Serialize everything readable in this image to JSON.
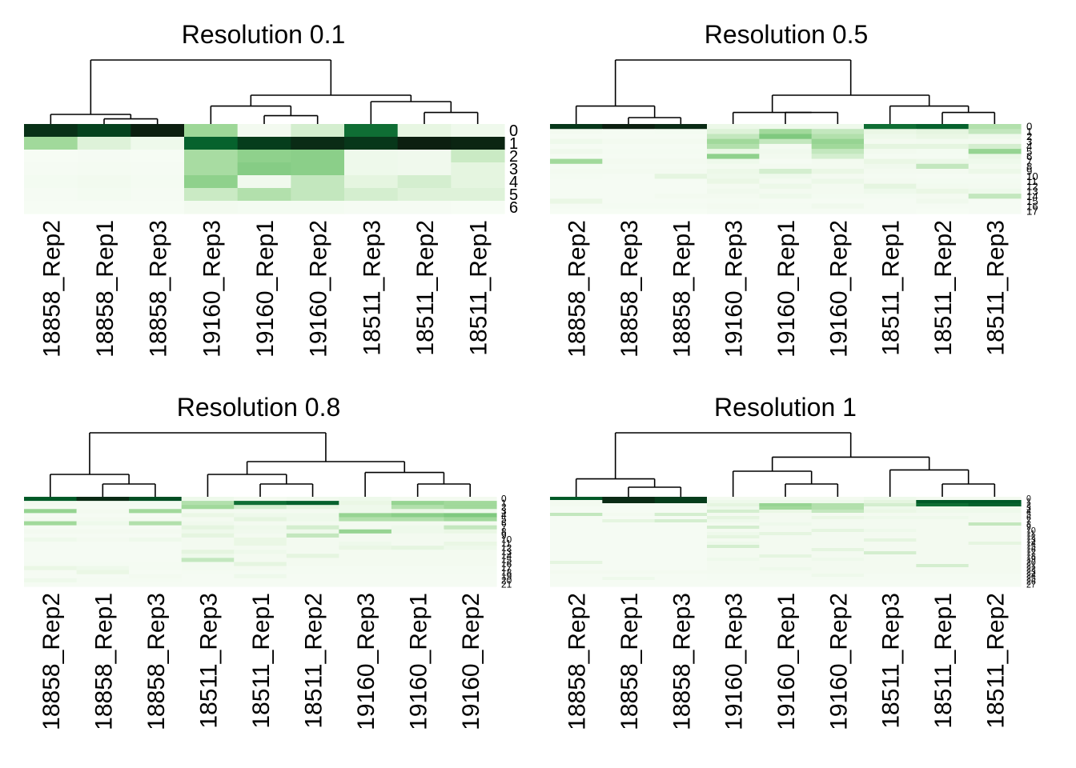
{
  "figure": {
    "background": "#ffffff",
    "palette": [
      "#f7fcf5",
      "#c7e9c0",
      "#74c476",
      "#238b45",
      "#006d2c",
      "#0c1f10"
    ]
  },
  "chart_data": [
    {
      "type": "heatmap",
      "title": "Resolution 0.1",
      "columns": [
        "18858_Rep2",
        "18858_Rep1",
        "18858_Rep3",
        "19160_Rep3",
        "19160_Rep1",
        "19160_Rep2",
        "18511_Rep3",
        "18511_Rep2",
        "18511_Rep1"
      ],
      "rows": [
        "0",
        "1",
        "2",
        "3",
        "4",
        "5",
        "6"
      ],
      "values": [
        [
          0.97,
          0.94,
          1.0,
          0.42,
          0.05,
          0.25,
          0.85,
          0.18,
          0.09
        ],
        [
          0.4,
          0.22,
          0.1,
          0.88,
          0.95,
          0.98,
          0.96,
          1.0,
          0.99
        ],
        [
          0.01,
          0.02,
          0.01,
          0.38,
          0.48,
          0.5,
          0.1,
          0.08,
          0.28
        ],
        [
          0.02,
          0.03,
          0.02,
          0.38,
          0.52,
          0.5,
          0.1,
          0.08,
          0.2
        ],
        [
          0.04,
          0.06,
          0.03,
          0.48,
          0.08,
          0.3,
          0.2,
          0.25,
          0.2
        ],
        [
          0.02,
          0.04,
          0.02,
          0.28,
          0.35,
          0.3,
          0.25,
          0.22,
          0.22
        ],
        [
          0.01,
          0.01,
          0.01,
          0.06,
          0.04,
          0.04,
          0.02,
          0.02,
          0.01
        ]
      ],
      "dendrogram": "(((18858_Rep2,(18858_Rep1,18858_Rep3)),((19160_Rep3,(19160_Rep1,19160_Rep2)),(18511_Rep3,(18511_Rep2,18511_Rep1)))))",
      "color_scale": "white-to-dark-green"
    },
    {
      "type": "heatmap",
      "title": "Resolution 0.5",
      "columns": [
        "18858_Rep2",
        "18858_Rep3",
        "18858_Rep1",
        "19160_Rep3",
        "19160_Rep1",
        "19160_Rep2",
        "18511_Rep1",
        "18511_Rep2",
        "18511_Rep3"
      ],
      "rows": [
        "0",
        "1",
        "2",
        "3",
        "4",
        "5",
        "6",
        "7",
        "8",
        "9",
        "10",
        "11",
        "12",
        "13",
        "14",
        "15",
        "16",
        "17"
      ],
      "values": [
        [
          0.96,
          1.0,
          0.98,
          0.12,
          0.1,
          0.1,
          0.85,
          0.88,
          0.35
        ],
        [
          0.05,
          0.03,
          0.04,
          0.22,
          0.4,
          0.3,
          0.15,
          0.2,
          0.3
        ],
        [
          0.02,
          0.02,
          0.02,
          0.3,
          0.55,
          0.35,
          0.1,
          0.15,
          0.1
        ],
        [
          0.1,
          0.05,
          0.05,
          0.4,
          0.3,
          0.45,
          0.05,
          0.06,
          0.05
        ],
        [
          0.02,
          0.02,
          0.02,
          0.35,
          0.05,
          0.4,
          0.2,
          0.2,
          0.25
        ],
        [
          0.08,
          0.03,
          0.03,
          0.15,
          0.08,
          0.3,
          0.06,
          0.04,
          0.45
        ],
        [
          0.02,
          0.02,
          0.02,
          0.48,
          0.06,
          0.25,
          0.03,
          0.03,
          0.15
        ],
        [
          0.4,
          0.05,
          0.05,
          0.1,
          0.02,
          0.05,
          0.15,
          0.12,
          0.1
        ],
        [
          0.03,
          0.03,
          0.03,
          0.05,
          0.05,
          0.05,
          0.08,
          0.3,
          0.06
        ],
        [
          0.05,
          0.05,
          0.05,
          0.12,
          0.25,
          0.15,
          0.05,
          0.05,
          0.12
        ],
        [
          0.03,
          0.02,
          0.2,
          0.1,
          0.1,
          0.05,
          0.03,
          0.02,
          0.02
        ],
        [
          0.02,
          0.02,
          0.02,
          0.15,
          0.05,
          0.12,
          0.05,
          0.04,
          0.04
        ],
        [
          0.02,
          0.02,
          0.02,
          0.05,
          0.12,
          0.05,
          0.2,
          0.06,
          0.05
        ],
        [
          0.02,
          0.02,
          0.02,
          0.08,
          0.05,
          0.05,
          0.1,
          0.15,
          0.1
        ],
        [
          0.02,
          0.02,
          0.05,
          0.05,
          0.1,
          0.04,
          0.04,
          0.05,
          0.3
        ],
        [
          0.15,
          0.02,
          0.02,
          0.03,
          0.02,
          0.02,
          0.02,
          0.08,
          0.02
        ],
        [
          0.02,
          0.03,
          0.03,
          0.05,
          0.03,
          0.08,
          0.02,
          0.02,
          0.02
        ],
        [
          0.01,
          0.01,
          0.01,
          0.03,
          0.02,
          0.02,
          0.02,
          0.01,
          0.02
        ]
      ],
      "dendrogram": "((18858_Rep2,(18858_Rep3,18858_Rep1)),((19160_Rep3,(19160_Rep1,19160_Rep2)),(18511_Rep1,(18511_Rep2,18511_Rep3))))",
      "color_scale": "white-to-dark-green"
    },
    {
      "type": "heatmap",
      "title": "Resolution 0.8",
      "columns": [
        "18858_Rep2",
        "18858_Rep1",
        "18858_Rep3",
        "18511_Rep3",
        "18511_Rep1",
        "18511_Rep2",
        "19160_Rep3",
        "19160_Rep1",
        "19160_Rep2"
      ],
      "rows": [
        "0",
        "1",
        "2",
        "3",
        "4",
        "5",
        "6",
        "7",
        "8",
        "9",
        "10",
        "11",
        "12",
        "13",
        "14",
        "15",
        "16",
        "17",
        "18",
        "19",
        "20",
        "21"
      ],
      "values": [
        [
          0.9,
          0.98,
          0.92,
          0.1,
          0.05,
          0.08,
          0.1,
          0.05,
          0.05
        ],
        [
          0.05,
          0.03,
          0.04,
          0.35,
          0.85,
          0.88,
          0.15,
          0.45,
          0.4
        ],
        [
          0.02,
          0.02,
          0.02,
          0.4,
          0.25,
          0.2,
          0.1,
          0.35,
          0.4
        ],
        [
          0.45,
          0.05,
          0.4,
          0.05,
          0.05,
          0.05,
          0.1,
          0.15,
          0.1
        ],
        [
          0.02,
          0.02,
          0.02,
          0.15,
          0.1,
          0.1,
          0.45,
          0.5,
          0.55
        ],
        [
          0.05,
          0.05,
          0.05,
          0.05,
          0.2,
          0.1,
          0.35,
          0.35,
          0.4
        ],
        [
          0.4,
          0.1,
          0.35,
          0.08,
          0.05,
          0.05,
          0.05,
          0.05,
          0.05
        ],
        [
          0.02,
          0.02,
          0.02,
          0.2,
          0.1,
          0.25,
          0.05,
          0.1,
          0.3
        ],
        [
          0.05,
          0.05,
          0.05,
          0.1,
          0.08,
          0.1,
          0.45,
          0.1,
          0.15
        ],
        [
          0.02,
          0.02,
          0.02,
          0.2,
          0.05,
          0.3,
          0.05,
          0.05,
          0.05
        ],
        [
          0.1,
          0.05,
          0.1,
          0.05,
          0.15,
          0.05,
          0.05,
          0.05,
          0.05
        ],
        [
          0.02,
          0.02,
          0.02,
          0.05,
          0.15,
          0.05,
          0.1,
          0.05,
          0.15
        ],
        [
          0.02,
          0.02,
          0.02,
          0.05,
          0.05,
          0.05,
          0.15,
          0.2,
          0.1
        ],
        [
          0.02,
          0.02,
          0.02,
          0.2,
          0.1,
          0.05,
          0.05,
          0.05,
          0.05
        ],
        [
          0.02,
          0.02,
          0.02,
          0.1,
          0.05,
          0.2,
          0.05,
          0.05,
          0.05
        ],
        [
          0.02,
          0.02,
          0.02,
          0.3,
          0.05,
          0.05,
          0.05,
          0.05,
          0.05
        ],
        [
          0.03,
          0.03,
          0.03,
          0.05,
          0.2,
          0.05,
          0.05,
          0.05,
          0.05
        ],
        [
          0.15,
          0.1,
          0.03,
          0.05,
          0.05,
          0.03,
          0.03,
          0.03,
          0.03
        ],
        [
          0.02,
          0.15,
          0.02,
          0.03,
          0.03,
          0.03,
          0.03,
          0.03,
          0.03
        ],
        [
          0.02,
          0.02,
          0.05,
          0.02,
          0.1,
          0.02,
          0.02,
          0.02,
          0.02
        ],
        [
          0.1,
          0.03,
          0.03,
          0.02,
          0.02,
          0.02,
          0.02,
          0.02,
          0.02
        ],
        [
          0.02,
          0.02,
          0.02,
          0.02,
          0.02,
          0.02,
          0.02,
          0.02,
          0.02
        ]
      ],
      "dendrogram": "((18858_Rep2,(18858_Rep1,18858_Rep3)),((18511_Rep3,(18511_Rep1,18511_Rep2)),(19160_Rep3,(19160_Rep1,19160_Rep2))))",
      "color_scale": "white-to-dark-green"
    },
    {
      "type": "heatmap",
      "title": "Resolution 1",
      "columns": [
        "18858_Rep2",
        "18858_Rep1",
        "18858_Rep3",
        "19160_Rep3",
        "19160_Rep1",
        "19160_Rep2",
        "18511_Rep3",
        "18511_Rep1",
        "18511_Rep2"
      ],
      "rows": [
        "0",
        "1",
        "2",
        "3",
        "4",
        "5",
        "6",
        "7",
        "8",
        "9",
        "10",
        "11",
        "12",
        "13",
        "14",
        "15",
        "16",
        "17",
        "18",
        "19",
        "20",
        "21",
        "22",
        "23",
        "24",
        "25",
        "26",
        "27"
      ],
      "values": [
        [
          0.9,
          0.98,
          0.95,
          0.05,
          0.05,
          0.05,
          0.1,
          0.05,
          0.05
        ],
        [
          0.05,
          0.98,
          0.95,
          0.1,
          0.1,
          0.1,
          0.2,
          0.9,
          0.9
        ],
        [
          0.05,
          0.02,
          0.02,
          0.2,
          0.45,
          0.35,
          0.25,
          0.85,
          0.88
        ],
        [
          0.02,
          0.02,
          0.02,
          0.1,
          0.4,
          0.35,
          0.1,
          0.1,
          0.1
        ],
        [
          0.02,
          0.02,
          0.02,
          0.25,
          0.15,
          0.3,
          0.15,
          0.1,
          0.1
        ],
        [
          0.3,
          0.05,
          0.25,
          0.05,
          0.05,
          0.05,
          0.05,
          0.05,
          0.05
        ],
        [
          0.02,
          0.02,
          0.02,
          0.2,
          0.05,
          0.15,
          0.1,
          0.1,
          0.05
        ],
        [
          0.02,
          0.2,
          0.25,
          0.1,
          0.05,
          0.05,
          0.05,
          0.05,
          0.05
        ],
        [
          0.02,
          0.02,
          0.02,
          0.05,
          0.1,
          0.05,
          0.05,
          0.05,
          0.3
        ],
        [
          0.02,
          0.02,
          0.02,
          0.25,
          0.05,
          0.05,
          0.05,
          0.05,
          0.05
        ],
        [
          0.02,
          0.02,
          0.02,
          0.05,
          0.05,
          0.2,
          0.1,
          0.05,
          0.05
        ],
        [
          0.02,
          0.02,
          0.02,
          0.1,
          0.2,
          0.05,
          0.05,
          0.05,
          0.05
        ],
        [
          0.02,
          0.02,
          0.02,
          0.2,
          0.05,
          0.05,
          0.05,
          0.05,
          0.05
        ],
        [
          0.02,
          0.02,
          0.02,
          0.05,
          0.05,
          0.05,
          0.2,
          0.05,
          0.05
        ],
        [
          0.02,
          0.02,
          0.02,
          0.1,
          0.05,
          0.05,
          0.05,
          0.05,
          0.2
        ],
        [
          0.02,
          0.02,
          0.02,
          0.25,
          0.05,
          0.05,
          0.05,
          0.05,
          0.05
        ],
        [
          0.02,
          0.02,
          0.02,
          0.05,
          0.05,
          0.2,
          0.05,
          0.05,
          0.05
        ],
        [
          0.02,
          0.02,
          0.02,
          0.05,
          0.05,
          0.05,
          0.25,
          0.05,
          0.05
        ],
        [
          0.02,
          0.02,
          0.02,
          0.05,
          0.2,
          0.05,
          0.05,
          0.05,
          0.05
        ],
        [
          0.02,
          0.02,
          0.02,
          0.1,
          0.05,
          0.1,
          0.05,
          0.05,
          0.05
        ],
        [
          0.2,
          0.02,
          0.02,
          0.05,
          0.05,
          0.05,
          0.05,
          0.05,
          0.05
        ],
        [
          0.02,
          0.02,
          0.02,
          0.05,
          0.05,
          0.05,
          0.05,
          0.25,
          0.05
        ],
        [
          0.02,
          0.02,
          0.02,
          0.05,
          0.1,
          0.05,
          0.05,
          0.05,
          0.05
        ],
        [
          0.05,
          0.05,
          0.05,
          0.05,
          0.05,
          0.05,
          0.05,
          0.05,
          0.05
        ],
        [
          0.02,
          0.02,
          0.02,
          0.03,
          0.03,
          0.1,
          0.03,
          0.03,
          0.03
        ],
        [
          0.02,
          0.1,
          0.02,
          0.03,
          0.03,
          0.03,
          0.03,
          0.03,
          0.03
        ],
        [
          0.02,
          0.02,
          0.02,
          0.02,
          0.02,
          0.02,
          0.02,
          0.02,
          0.02
        ],
        [
          0.02,
          0.02,
          0.02,
          0.02,
          0.02,
          0.02,
          0.02,
          0.02,
          0.02
        ]
      ],
      "dendrogram": "((18858_Rep2,(18858_Rep1,18858_Rep3)),((19160_Rep3,(19160_Rep1,19160_Rep2)),(18511_Rep3,(18511_Rep1,18511_Rep2))))",
      "color_scale": "white-to-dark-green"
    }
  ]
}
